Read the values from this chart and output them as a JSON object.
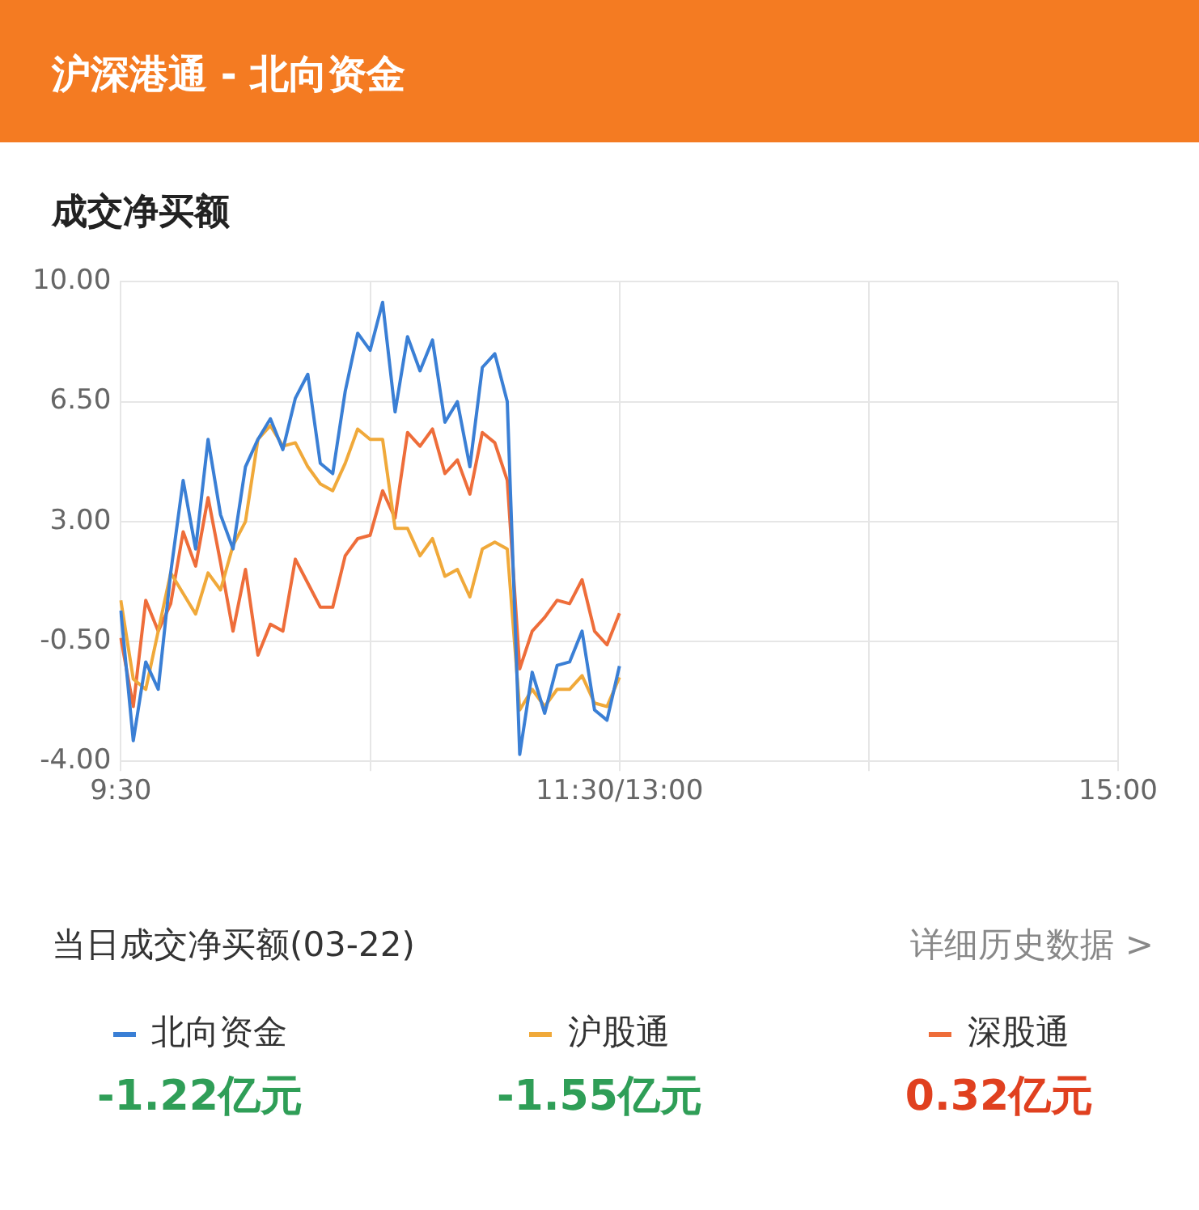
{
  "chart_data": {
    "type": "line",
    "title": "沪深港通 - 北向资金",
    "subtitle": "成交净买额",
    "categories": [
      "9:30",
      null,
      null,
      null,
      null,
      null,
      null,
      null,
      null,
      null,
      null,
      null,
      null,
      null,
      null,
      null,
      null,
      null,
      null,
      null,
      null,
      null,
      null,
      null,
      null,
      null,
      null,
      null,
      null,
      null,
      null,
      null,
      null,
      null,
      null,
      null,
      null,
      null,
      null,
      null,
      "11:30/13:00",
      null,
      null,
      null,
      null,
      null,
      null,
      null,
      null,
      null,
      null,
      null,
      null,
      null,
      null,
      null,
      null,
      null,
      null,
      null,
      null,
      null,
      null,
      null,
      null,
      null,
      null,
      null,
      null,
      null,
      null,
      null,
      null,
      null,
      null,
      null,
      null,
      null,
      null,
      null,
      "15:00"
    ],
    "ylim": [
      -4,
      10
    ],
    "yticks": [
      {
        "value": -4,
        "label": "-4.00"
      },
      {
        "value": -0.5,
        "label": "-0.50"
      },
      {
        "value": 3,
        "label": "3.00"
      },
      {
        "value": 6.5,
        "label": "6.50"
      },
      {
        "value": 10,
        "label": "10.00"
      }
    ],
    "grid": true,
    "legend": "bottom",
    "line_style": "solid",
    "annotations": [
      "当日成交净买额(03-22)",
      "详细历史数据 >",
      "-1.22亿元",
      "-1.55亿元",
      "0.32亿元"
    ],
    "series": [
      {
        "name": "北向资金",
        "color": "#3a7fd5",
        "values": [
          0.4,
          -3.4,
          -1.1,
          -1.9,
          1.5,
          4.2,
          2.2,
          5.4,
          3.2,
          2.2,
          4.6,
          5.4,
          6.0,
          5.1,
          6.6,
          7.3,
          4.7,
          4.4,
          6.8,
          8.5,
          8.0,
          9.4,
          6.2,
          8.4,
          7.4,
          8.3,
          5.9,
          6.5,
          4.6,
          7.5,
          7.9,
          6.5,
          -3.8,
          -1.4,
          -2.6,
          -1.2,
          -1.1,
          -0.2,
          -2.5,
          -2.8,
          -1.22,
          null,
          null,
          null,
          null,
          null,
          null,
          null,
          null,
          null,
          null,
          null,
          null,
          null,
          null,
          null,
          null,
          null,
          null,
          null,
          null,
          null,
          null,
          null,
          null,
          null,
          null,
          null,
          null,
          null,
          null,
          null,
          null,
          null,
          null,
          null,
          null,
          null,
          null,
          null,
          null
        ]
      },
      {
        "name": "沪股通",
        "color": "#f0a93a",
        "values": [
          0.7,
          -1.6,
          -1.9,
          -0.2,
          1.5,
          0.9,
          0.3,
          1.5,
          1.0,
          2.3,
          3.0,
          5.4,
          5.8,
          5.2,
          5.3,
          4.6,
          4.1,
          3.9,
          4.7,
          5.7,
          5.4,
          5.4,
          2.8,
          2.8,
          2.0,
          2.5,
          1.4,
          1.6,
          0.8,
          2.2,
          2.4,
          2.2,
          -2.5,
          -1.9,
          -2.4,
          -1.9,
          -1.9,
          -1.5,
          -2.3,
          -2.4,
          -1.55,
          null,
          null,
          null,
          null,
          null,
          null,
          null,
          null,
          null,
          null,
          null,
          null,
          null,
          null,
          null,
          null,
          null,
          null,
          null,
          null,
          null,
          null,
          null,
          null,
          null,
          null,
          null,
          null,
          null,
          null,
          null,
          null,
          null,
          null,
          null,
          null,
          null,
          null,
          null,
          null
        ]
      },
      {
        "name": "深股通",
        "color": "#ee6d3a",
        "values": [
          -0.4,
          -2.4,
          0.7,
          -0.2,
          0.6,
          2.7,
          1.7,
          3.7,
          1.8,
          -0.2,
          1.6,
          -0.9,
          0.0,
          -0.2,
          1.9,
          1.2,
          0.5,
          0.5,
          2.0,
          2.5,
          2.6,
          3.9,
          3.1,
          5.6,
          5.2,
          5.7,
          4.4,
          4.8,
          3.8,
          5.6,
          5.3,
          4.2,
          -1.3,
          -0.2,
          0.2,
          0.7,
          0.6,
          1.3,
          -0.2,
          -0.6,
          0.32,
          null,
          null,
          null,
          null,
          null,
          null,
          null,
          null,
          null,
          null,
          null,
          null,
          null,
          null,
          null,
          null,
          null,
          null,
          null,
          null,
          null,
          null,
          null,
          null,
          null,
          null,
          null,
          null,
          null,
          null,
          null,
          null,
          null,
          null,
          null,
          null,
          null,
          null,
          null,
          null
        ]
      }
    ]
  }
}
